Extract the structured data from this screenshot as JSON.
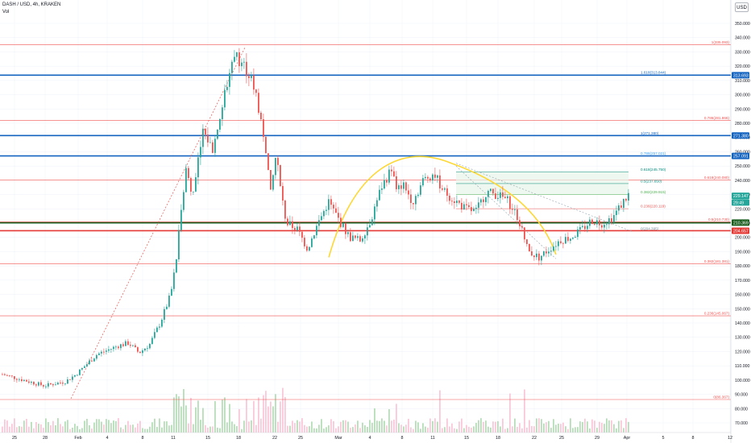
{
  "header": {
    "symbol_line": "DASH / USD, 4h, KRAKEN",
    "volume_label": "Vol",
    "currency_button": "USD"
  },
  "colors": {
    "up_candle": "#26a69a",
    "down_candle": "#ef5350",
    "volume_up": "#a5d6a7",
    "volume_down": "#f8bbd0",
    "fib_line": "#ef5350",
    "blue_level": "#1565c0",
    "green_level": "#1b5e20",
    "red_level": "#e53935",
    "arc": "#fdd835",
    "price_tag": "#26a69a"
  },
  "chart_data": {
    "type": "candlestick",
    "title": "",
    "price_axis": {
      "min": 65,
      "max": 355,
      "ticks": [
        70,
        80,
        90,
        100,
        110,
        120,
        130,
        140,
        150,
        160,
        170,
        180,
        190,
        200,
        210,
        220,
        230,
        240,
        250,
        260,
        270,
        280,
        290,
        300,
        310,
        320,
        330,
        340,
        350
      ],
      "tick_labels": [
        "70.000",
        "80.000",
        "90.000",
        "100.000",
        "110.000",
        "120.000",
        "130.000",
        "140.000",
        "150.000",
        "160.000",
        "170.000",
        "180.000",
        "190.000",
        "200.000",
        "210.000",
        "220.000",
        "230.000",
        "240.000",
        "250.000",
        "260.000",
        "270.000",
        "280.000",
        "290.000",
        "300.000",
        "310.000",
        "320.000",
        "330.000",
        "340.000",
        "350.000"
      ]
    },
    "time_axis": {
      "labels": [
        "25",
        "28",
        "Feb",
        "4",
        "8",
        "11",
        "15",
        "18",
        "22",
        "25",
        "Mar",
        "4",
        "8",
        "11",
        "15",
        "18",
        "22",
        "25",
        "29",
        "Apr",
        "5",
        "8",
        "12"
      ]
    },
    "price_path": [
      [
        0,
        104
      ],
      [
        2,
        100
      ],
      [
        4,
        96
      ],
      [
        6,
        99
      ],
      [
        7,
        104
      ],
      [
        9,
        118
      ],
      [
        11,
        124
      ],
      [
        12,
        126
      ],
      [
        13,
        119
      ],
      [
        14,
        125
      ],
      [
        15,
        140
      ],
      [
        16,
        160
      ],
      [
        16.5,
        182
      ],
      [
        17,
        222
      ],
      [
        17.5,
        250
      ],
      [
        18,
        228
      ],
      [
        19,
        275
      ],
      [
        20,
        262
      ],
      [
        21,
        295
      ],
      [
        22,
        330
      ],
      [
        23,
        320
      ],
      [
        24,
        305
      ],
      [
        25,
        265
      ],
      [
        25.5,
        230
      ],
      [
        26,
        258
      ],
      [
        26.5,
        230
      ],
      [
        27,
        210
      ],
      [
        28,
        206
      ],
      [
        29,
        192
      ],
      [
        30,
        210
      ],
      [
        31,
        225
      ],
      [
        32,
        212
      ],
      [
        33,
        200
      ],
      [
        34,
        198
      ],
      [
        35,
        212
      ],
      [
        36,
        235
      ],
      [
        37,
        248
      ],
      [
        37.5,
        232
      ],
      [
        38,
        238
      ],
      [
        39,
        225
      ],
      [
        40,
        240
      ],
      [
        41,
        245
      ],
      [
        42,
        232
      ],
      [
        43,
        226
      ],
      [
        44,
        220
      ],
      [
        45,
        218
      ],
      [
        46,
        232
      ],
      [
        47,
        230
      ],
      [
        48,
        226
      ],
      [
        49,
        214
      ],
      [
        50,
        190
      ],
      [
        51,
        186
      ],
      [
        52,
        192
      ],
      [
        53,
        198
      ],
      [
        54,
        200
      ],
      [
        55,
        205
      ],
      [
        56,
        212
      ],
      [
        57,
        210
      ],
      [
        58,
        214
      ],
      [
        59,
        225
      ],
      [
        59.5,
        230
      ]
    ],
    "current_price": 229.147,
    "price_tags": [
      {
        "text": "313.693",
        "price": 313.693,
        "color": "#1565c0"
      },
      {
        "text": "271.380",
        "price": 271.38,
        "color": "#1565c0"
      },
      {
        "text": "257.091",
        "price": 257.091,
        "color": "#1565c0"
      },
      {
        "text": "229.147",
        "price": 229.147,
        "color": "#26a69a"
      },
      {
        "text": "29:49",
        "price": 224.5,
        "color": "#26a69a"
      },
      {
        "text": "210.369",
        "price": 210.369,
        "color": "#1b5e20"
      },
      {
        "text": "204.657",
        "price": 204.657,
        "color": "#e53935"
      }
    ],
    "horizontal_levels": [
      {
        "price": 335.093,
        "label": "1(335.093)",
        "color": "#ef5350",
        "width": 0.6
      },
      {
        "price": 313.693,
        "label": "",
        "color": "#1565c0",
        "width": 1.6
      },
      {
        "price": 281.866,
        "label": "0.786(281.866)",
        "color": "#ef5350",
        "width": 0.6
      },
      {
        "price": 271.38,
        "label": "",
        "color": "#1565c0",
        "width": 1.6
      },
      {
        "price": 257.091,
        "label": "",
        "color": "#1565c0",
        "width": 1.6
      },
      {
        "price": 240.08,
        "label": "0.618(240.080)",
        "color": "#ef5350",
        "width": 0.6
      },
      {
        "price": 210.369,
        "label": "",
        "color": "#1b5e20",
        "width": 2.2
      },
      {
        "price": 210.73,
        "label": "0.5(210.730)",
        "color": "#ef5350",
        "width": 0.6
      },
      {
        "price": 204.657,
        "label": "",
        "color": "#e53935",
        "width": 1.6
      },
      {
        "price": 181.381,
        "label": "0.382(181.381)",
        "color": "#ef5350",
        "width": 0.6
      },
      {
        "price": 145.067,
        "label": "0.236(145.067)",
        "color": "#ef5350",
        "width": 0.6
      },
      {
        "price": 86.367,
        "label": "0(86.367)",
        "color": "#ef5350",
        "width": 0.6
      }
    ],
    "fib_labels_secondary": [
      {
        "price": 313.844,
        "label": "1.618(313.844)",
        "color": "#1565c0"
      },
      {
        "price": 271.38,
        "label": "1(271.380)",
        "color": "#1565c0"
      },
      {
        "price": 257.021,
        "label": "0.786(257.021)",
        "color": "#42a5f5"
      },
      {
        "price": 245.75,
        "label": "0.618(245.750)",
        "color": "#00897b"
      },
      {
        "price": 237.65,
        "label": "0.5(237.650)",
        "color": "#00897b"
      },
      {
        "price": 229.915,
        "label": "0.382(229.915)",
        "color": "#4caf50"
      },
      {
        "price": 220.119,
        "label": "0.236(220.119)",
        "color": "#ef5350"
      },
      {
        "price": 204.395,
        "label": "0(204.395)",
        "color": "#78909c"
      }
    ],
    "grid": true,
    "legend": "none"
  }
}
